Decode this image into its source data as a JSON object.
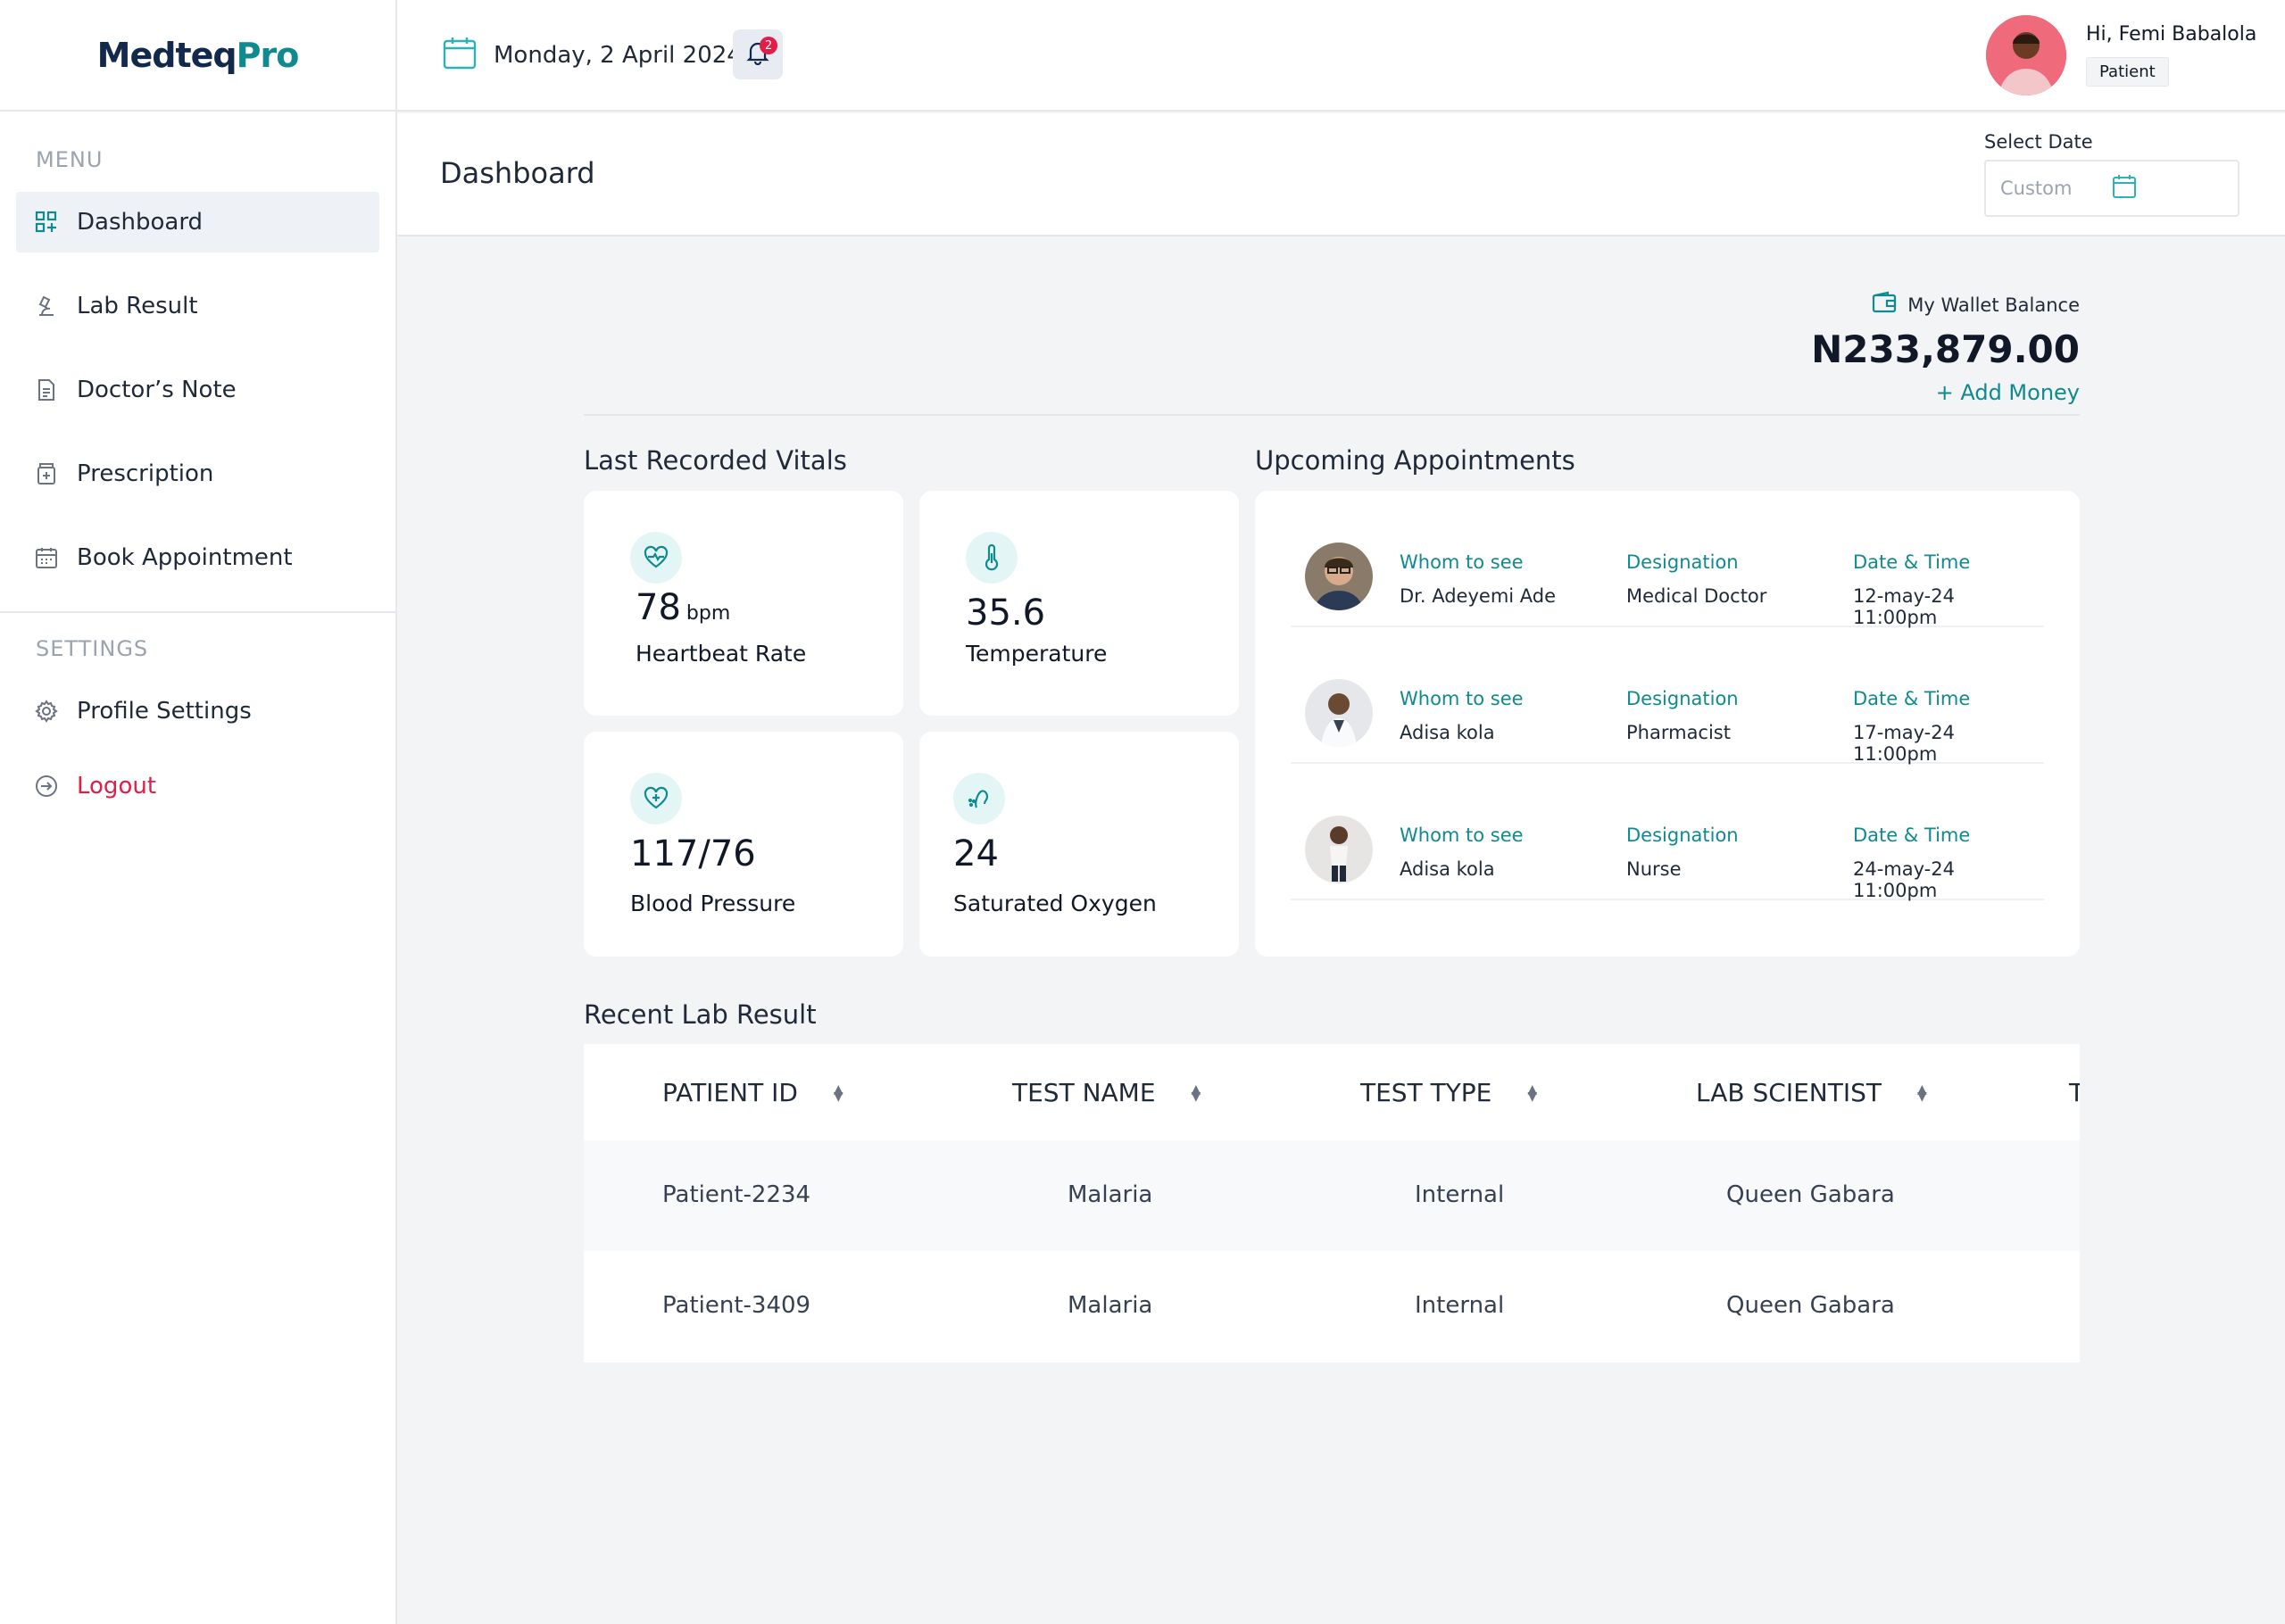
{
  "app": {
    "logo_text_a": "Medteq",
    "logo_text_b": "Pro"
  },
  "sidebar": {
    "menu_title": "MENU",
    "items": [
      {
        "label": "Dashboard",
        "icon": "dashboard-icon"
      },
      {
        "label": "Lab Result",
        "icon": "microscope-icon"
      },
      {
        "label": "Doctor’s Note",
        "icon": "document-icon"
      },
      {
        "label": "Prescription",
        "icon": "prescription-icon"
      },
      {
        "label": "Book Appointment",
        "icon": "calendar-icon"
      }
    ],
    "settings_title": "SETTINGS",
    "settings_items": [
      {
        "label": "Profile Settings",
        "icon": "gear-icon"
      },
      {
        "label": "Logout",
        "icon": "logout-icon"
      }
    ]
  },
  "header": {
    "date": "Monday, 2 April 2024",
    "notification_count": "2",
    "greeting": "Hi, Femi Babalola",
    "role": "Patient"
  },
  "subheader": {
    "title": "Dashboard",
    "select_date_label": "Select Date",
    "select_date_placeholder": "Custom"
  },
  "wallet": {
    "label": "My Wallet Balance",
    "amount": "N233,879.00",
    "add_money": "+ Add Money"
  },
  "vitals": {
    "title": "Last Recorded Vitals",
    "items": [
      {
        "value": "78",
        "unit": "bpm",
        "label": "Heartbeat Rate",
        "icon": "heartbeat-icon"
      },
      {
        "value": "35.6",
        "unit": "",
        "label": "Temperature",
        "icon": "thermometer-icon"
      },
      {
        "value": "117/76",
        "unit": "",
        "label": "Blood Pressure",
        "icon": "heart-plus-icon"
      },
      {
        "value": "24",
        "unit": "",
        "label": "Saturated Oxygen",
        "icon": "lungs-icon"
      }
    ]
  },
  "appointments": {
    "title": "Upcoming Appointments",
    "col_whom": "Whom to see",
    "col_designation": "Designation",
    "col_datetime": "Date & Time",
    "rows": [
      {
        "name": "Dr. Adeyemi Ade",
        "designation": "Medical Doctor",
        "datetime": "12-may-24 11:00pm"
      },
      {
        "name": "Adisa kola",
        "designation": "Pharmacist",
        "datetime": "17-may-24 11:00pm"
      },
      {
        "name": "Adisa kola",
        "designation": "Nurse",
        "datetime": "24-may-24 11:00pm"
      }
    ]
  },
  "lab": {
    "title": "Recent Lab Result",
    "columns": [
      "PATIENT ID",
      "TEST NAME",
      "TEST TYPE",
      "LAB SCIENTIST",
      "T"
    ],
    "rows": [
      {
        "patient_id": "Patient-2234",
        "test_name": "Malaria",
        "test_type": "Internal",
        "lab_scientist": "Queen Gabara"
      },
      {
        "patient_id": "Patient-3409",
        "test_name": "Malaria",
        "test_type": "Internal",
        "lab_scientist": "Queen Gabara"
      }
    ]
  },
  "colors": {
    "brand_teal": "#0f8a8e",
    "brand_navy": "#13294b",
    "danger": "#e11d48",
    "active_bg": "#eef2f6"
  }
}
